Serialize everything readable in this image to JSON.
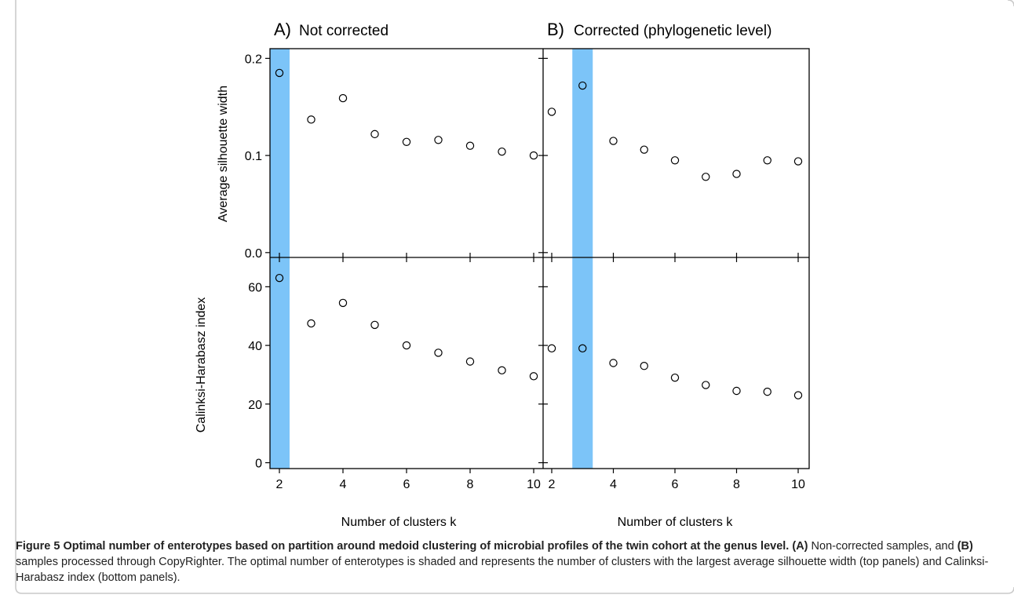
{
  "chart_data": {
    "type": "scatter",
    "panels": [
      {
        "title_letter": "A)",
        "title": "Not corrected",
        "shaded_k": 2
      },
      {
        "title_letter": "B)",
        "title": "Corrected (phylogenetic level)",
        "shaded_k": 3
      }
    ],
    "rows": [
      {
        "ylabel": "Average silhouette width",
        "ylim": [
          -0.005,
          0.21
        ],
        "yticks": [
          "0.0",
          "0.1",
          "0.2"
        ],
        "ytick_values": [
          0,
          0.1,
          0.2
        ]
      },
      {
        "ylabel": "Calinksi-Harabasz index",
        "ylim": [
          -2,
          70
        ],
        "yticks": [
          "0",
          "20",
          "40",
          "60"
        ],
        "ytick_values": [
          0,
          20,
          40,
          60
        ]
      }
    ],
    "xlabel": "Number of clusters k",
    "x": [
      2,
      3,
      4,
      5,
      6,
      7,
      8,
      9,
      10
    ],
    "xticks": [
      "2",
      "4",
      "6",
      "8",
      "10"
    ],
    "xtick_values": [
      2,
      4,
      6,
      8,
      10
    ],
    "xlim": [
      1.85,
      10.15
    ],
    "series": [
      {
        "panel": 0,
        "row": 0,
        "values": [
          0.185,
          0.137,
          0.159,
          0.122,
          0.114,
          0.116,
          0.11,
          0.104,
          0.1
        ]
      },
      {
        "panel": 1,
        "row": 0,
        "values": [
          0.145,
          0.172,
          0.115,
          0.106,
          0.095,
          0.078,
          0.081,
          0.095,
          0.094
        ]
      },
      {
        "panel": 0,
        "row": 1,
        "values": [
          63,
          47.5,
          54.5,
          47,
          40,
          37.5,
          34.5,
          31.5,
          29.5
        ]
      },
      {
        "panel": 1,
        "row": 1,
        "values": [
          39,
          39,
          34,
          33,
          29,
          26.5,
          24.5,
          24.2,
          23
        ]
      }
    ],
    "shade_color": "#7cc4f8",
    "marker": "open-circle"
  },
  "caption": {
    "figure_label": "Figure 5",
    "title_text": "Optimal number of enterotypes based on partition around medoid clustering of microbial profiles of the twin cohort at the genus level.",
    "a_label": "(A)",
    "a_text": "Non-corrected samples, and",
    "b_label": "(B)",
    "b_text": "samples processed through CopyRighter. The optimal number of enterotypes is shaded and represents the number of clusters with the largest average silhouette width (top panels) and Calinksi-Harabasz index (bottom panels)."
  }
}
